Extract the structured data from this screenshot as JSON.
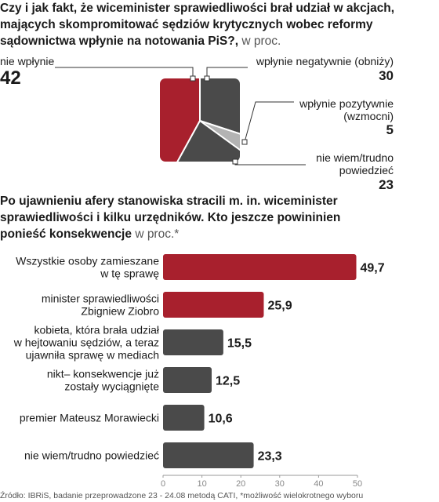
{
  "chart_data": [
    {
      "type": "pie",
      "title": "Czy i jak fakt, że wiceminister sprawiedliwości brał udział w akcjach, mających skompromitować sędziów krytycznych wobec reformy sądownictwa wpłynie na notowania  PiS?,",
      "unit": "w proc.",
      "slices": [
        {
          "label": "nie wpłynie",
          "value": 42,
          "color": "#a8202d"
        },
        {
          "label": "wpłynie negatywnie (obniży)",
          "value": 30,
          "color": "#4a4a4a"
        },
        {
          "label": "wpłynie pozytywnie (wzmocni)",
          "value": 5,
          "color": "#b3b3b3"
        },
        {
          "label": "nie wiem/trudno powiedzieć",
          "value": 23,
          "color": "#4a4a4a"
        }
      ]
    },
    {
      "type": "bar",
      "orientation": "horizontal",
      "title": "Po ujawnieniu afery stanowiska stracili m. in. wiceminister sprawiedliwości i kilku urzędników. Kto jeszcze powininien ponieść konsekwencje",
      "unit": "w proc.*",
      "categories": [
        "Wszystkie osoby zamieszane w tę sprawę",
        "minister sprawiedliwości Zbigniew Ziobro",
        "kobieta, która brała udział w hejtowaniu sędziów, a teraz ujawniła sprawę w mediach",
        "nikt– konsekwencje już zostały wyciągnięte",
        "premier Mateusz Morawiecki",
        "nie wiem/trudno powiedzieć"
      ],
      "values": [
        49.7,
        25.9,
        15.5,
        12.5,
        10.6,
        23.3
      ],
      "value_labels": [
        "49,7",
        "25,9",
        "15,5",
        "12,5",
        "10,6",
        "23,3"
      ],
      "colors": [
        "#a8202d",
        "#a8202d",
        "#4a4a4a",
        "#4a4a4a",
        "#4a4a4a",
        "#4a4a4a"
      ],
      "xlim": [
        0,
        50
      ],
      "xticks": [
        0,
        10,
        20,
        30,
        40,
        50
      ],
      "grid": false
    }
  ],
  "pie_labels": {
    "nie_wplynie": {
      "label": "nie wpłynie",
      "value": "42"
    },
    "negatywnie": {
      "label": "wpłynie negatywnie (obniży)",
      "value": "30"
    },
    "pozytywnie": {
      "label1": "wpłynie pozytywnie",
      "label2": "(wzmocni)",
      "value": "5"
    },
    "nie_wiem": {
      "label1": "nie wiem/trudno",
      "label2": "powiedzieć",
      "value": "23"
    }
  },
  "bar_label_lines": [
    [
      "Wszystkie osoby zamieszane",
      "w tę sprawę"
    ],
    [
      "minister sprawiedliwości",
      "Zbigniew Ziobro"
    ],
    [
      "kobieta, która brała udział",
      "w hejtowaniu sędziów, a teraz",
      "ujawniła sprawę w mediach"
    ],
    [
      "nikt– konsekwencje już",
      "zostały wyciągnięte"
    ],
    [
      "premier Mateusz Morawiecki"
    ],
    [
      "nie wiem/trudno powiedzieć"
    ]
  ],
  "titles": {
    "pie_lines": [
      "Czy i jak fakt, że wiceminister sprawiedliwości brał udział w akcjach,",
      "mających skompromitować sędziów krytycznych wobec reformy",
      "sądownictwa wpłynie na notowania  PiS?,"
    ],
    "pie_unit": "w proc.",
    "bar_lines": [
      "Po ujawnieniu afery stanowiska stracili m. in. wiceminister",
      "sprawiedliwości i kilku urzędników. Kto jeszcze powininien",
      "ponieść konsekwencje"
    ],
    "bar_unit": "w proc.*"
  },
  "source": "Źródło: IBRiS, badanie przeprowadzone 23 - 24.08 metodą CATI, *możliwość wielokrotnego wyboru"
}
